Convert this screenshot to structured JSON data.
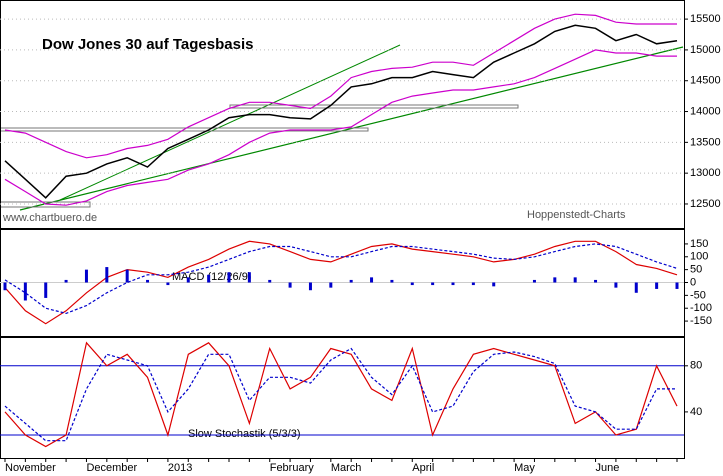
{
  "chart_data": [
    {
      "type": "price",
      "title": "Dow Jones 30 auf Tagesbasis",
      "source_left": "www.chartbuero.de",
      "source_right": "Hoppenstedt-Charts",
      "ylim": [
        12110,
        15810
      ],
      "yticks": [
        12500,
        13000,
        13500,
        14000,
        14500,
        15000,
        15500
      ],
      "grid": true,
      "series": [
        {
          "color": "#000000",
          "values": [
            13200,
            12900,
            12600,
            12950,
            13000,
            13150,
            13250,
            13100,
            13400,
            13550,
            13700,
            13900,
            13950,
            13950,
            13900,
            13880,
            14100,
            14400,
            14450,
            14550,
            14550,
            14650,
            14600,
            14550,
            14800,
            14950,
            15100,
            15300,
            15400,
            15350,
            15150,
            15250,
            15100,
            15150
          ]
        },
        {
          "color": "#cc00cc",
          "values": [
            13700,
            13650,
            13500,
            13350,
            13250,
            13300,
            13400,
            13450,
            13550,
            13750,
            13900,
            14050,
            14150,
            14150,
            14100,
            14050,
            14250,
            14550,
            14650,
            14700,
            14720,
            14800,
            14800,
            14750,
            14950,
            15150,
            15350,
            15500,
            15580,
            15560,
            15450,
            15420,
            15420,
            15420
          ]
        },
        {
          "color": "#cc00cc",
          "values": [
            12900,
            12700,
            12500,
            12480,
            12550,
            12700,
            12800,
            12850,
            12900,
            13050,
            13150,
            13300,
            13500,
            13650,
            13700,
            13700,
            13700,
            13750,
            13950,
            14150,
            14250,
            14300,
            14350,
            14350,
            14400,
            14450,
            14550,
            14700,
            14850,
            15000,
            14950,
            14950,
            14900,
            14900
          ]
        }
      ]
    },
    {
      "type": "macd",
      "label": "MACD (12/26/9)",
      "ylim": [
        -208,
        208
      ],
      "yticks": [
        150,
        100,
        50,
        0,
        -50,
        -100,
        -150
      ],
      "series": [
        {
          "color": "#dd0000",
          "values": [
            -20,
            -110,
            -160,
            -110,
            -40,
            20,
            50,
            40,
            20,
            60,
            90,
            130,
            160,
            150,
            120,
            90,
            80,
            110,
            140,
            150,
            130,
            120,
            110,
            100,
            80,
            90,
            110,
            140,
            160,
            160,
            120,
            70,
            55,
            30
          ]
        },
        {
          "color": "#0000cc",
          "dashed": true,
          "values": [
            10,
            -40,
            -100,
            -120,
            -90,
            -40,
            0,
            30,
            30,
            40,
            60,
            90,
            120,
            140,
            140,
            120,
            100,
            100,
            120,
            140,
            140,
            130,
            120,
            110,
            95,
            90,
            100,
            120,
            140,
            150,
            140,
            110,
            80,
            55
          ]
        },
        {
          "color": "#0000cc",
          "bars": true,
          "values": [
            -30,
            -70,
            -60,
            10,
            50,
            60,
            50,
            10,
            -10,
            20,
            30,
            40,
            40,
            10,
            -20,
            -30,
            -20,
            10,
            20,
            10,
            -10,
            -10,
            -10,
            -10,
            -15,
            0,
            10,
            20,
            20,
            10,
            -20,
            -40,
            -25,
            -25
          ]
        }
      ]
    },
    {
      "type": "stochastic",
      "label": "Slow Stochastik (5/3/3)",
      "ylim": [
        0,
        105
      ],
      "yticks": [
        40,
        80
      ],
      "hlines": [
        20,
        80
      ],
      "categories": [
        "November",
        null,
        null,
        null,
        "December",
        null,
        null,
        null,
        "2013",
        null,
        null,
        null,
        null,
        "February",
        null,
        null,
        "March",
        null,
        null,
        null,
        "April",
        null,
        null,
        null,
        null,
        "May",
        null,
        null,
        null,
        "June",
        null,
        null,
        null,
        null
      ],
      "series": [
        {
          "color": "#dd0000",
          "values": [
            40,
            20,
            10,
            20,
            100,
            80,
            90,
            70,
            20,
            90,
            100,
            80,
            30,
            95,
            60,
            70,
            95,
            90,
            60,
            50,
            95,
            20,
            60,
            90,
            95,
            90,
            85,
            80,
            30,
            40,
            20,
            25,
            80,
            45
          ]
        },
        {
          "color": "#0000cc",
          "dashed": true,
          "values": [
            45,
            30,
            15,
            15,
            60,
            90,
            85,
            80,
            40,
            60,
            90,
            90,
            50,
            70,
            70,
            65,
            85,
            95,
            70,
            55,
            80,
            40,
            45,
            75,
            90,
            92,
            88,
            82,
            45,
            40,
            25,
            25,
            60,
            60
          ]
        }
      ]
    }
  ]
}
